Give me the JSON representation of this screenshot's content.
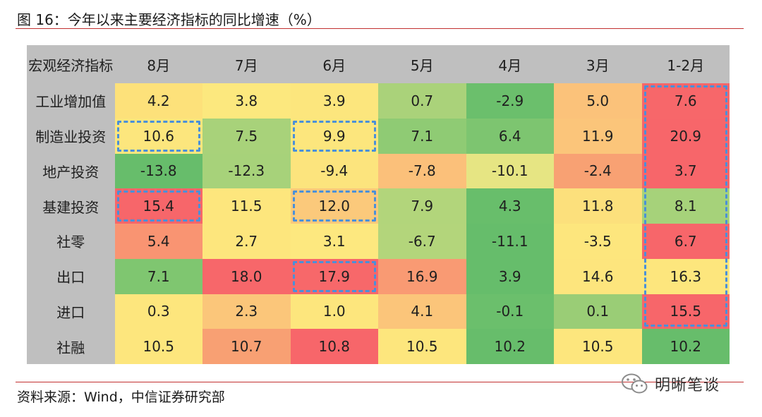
{
  "figure": {
    "title": "图 16：今年以来主要经济指标的同比增速（%）",
    "source": "资料来源：Wind，中信证券研究部",
    "watermark_brand": "明晰笔谈"
  },
  "chart_data": {
    "type": "heatmap",
    "corner_label": "宏观经济指标",
    "columns": [
      "8月",
      "7月",
      "6月",
      "5月",
      "4月",
      "3月",
      "1-2月"
    ],
    "rows": [
      {
        "label": "工业增加值",
        "values": [
          "4.2",
          "3.8",
          "3.9",
          "0.7",
          "-2.9",
          "5.0",
          "7.6"
        ],
        "colors": [
          "#fde17a",
          "#fce87e",
          "#fce67d",
          "#aad27a",
          "#6bbf6c",
          "#fbc27a",
          "#f7676a"
        ]
      },
      {
        "label": "制造业投资",
        "values": [
          "10.6",
          "7.5",
          "9.9",
          "7.1",
          "6.4",
          "11.9",
          "20.9"
        ],
        "colors": [
          "#fce67d",
          "#a8d27a",
          "#fce67d",
          "#8fcb74",
          "#7dc570",
          "#fbc57a",
          "#f7666a"
        ]
      },
      {
        "label": "地产投资",
        "values": [
          "-13.8",
          "-12.3",
          "-9.4",
          "-7.8",
          "-10.1",
          "-2.4",
          "3.7"
        ],
        "colors": [
          "#67bd6b",
          "#a7d27a",
          "#fce47d",
          "#fbc07a",
          "#e6e583",
          "#f8a173",
          "#f7666a"
        ]
      },
      {
        "label": "基建投资",
        "values": [
          "15.4",
          "11.5",
          "12.0",
          "7.9",
          "4.3",
          "11.8",
          "8.1"
        ],
        "colors": [
          "#f7666a",
          "#fde67d",
          "#fbc97b",
          "#b2d57b",
          "#68be6b",
          "#fce07c",
          "#a6d27a"
        ]
      },
      {
        "label": "社零",
        "values": [
          "5.4",
          "2.7",
          "3.1",
          "-6.7",
          "-11.1",
          "-3.5",
          "6.7"
        ],
        "colors": [
          "#f99472",
          "#fde67d",
          "#fde87f",
          "#b3d57b",
          "#66bd6b",
          "#fde67d",
          "#f7666a"
        ]
      },
      {
        "label": "出口",
        "values": [
          "7.1",
          "18.0",
          "17.9",
          "16.9",
          "3.9",
          "14.6",
          "16.3"
        ],
        "colors": [
          "#7fc670",
          "#f7676a",
          "#f7686a",
          "#f99a73",
          "#66bd6b",
          "#fde57d",
          "#fde67d"
        ]
      },
      {
        "label": "进口",
        "values": [
          "0.3",
          "2.3",
          "1.0",
          "4.1",
          "-0.1",
          "0.1",
          "15.5"
        ],
        "colors": [
          "#fde67d",
          "#fbc67a",
          "#fde67d",
          "#fbc57a",
          "#6bbf6c",
          "#9acd76",
          "#f7666a"
        ]
      },
      {
        "label": "社融",
        "values": [
          "10.5",
          "10.7",
          "10.8",
          "10.5",
          "10.2",
          "10.5",
          "10.2"
        ],
        "colors": [
          "#fde67d",
          "#f8a073",
          "#f7666a",
          "#fde67d",
          "#67bd6b",
          "#fde67d",
          "#67bd6b"
        ]
      }
    ],
    "header_bg": "#bfbfbf",
    "highlight_color": "#4a90d9",
    "highlights": [
      {
        "row_start": 1,
        "row_end": 1,
        "col_start": 0,
        "col_end": 0
      },
      {
        "row_start": 3,
        "row_end": 3,
        "col_start": 0,
        "col_end": 0
      },
      {
        "row_start": 1,
        "row_end": 1,
        "col_start": 2,
        "col_end": 2
      },
      {
        "row_start": 3,
        "row_end": 3,
        "col_start": 2,
        "col_end": 2
      },
      {
        "row_start": 5,
        "row_end": 5,
        "col_start": 2,
        "col_end": 2
      },
      {
        "row_start": 0,
        "row_end": 6,
        "col_start": 6,
        "col_end": 6
      }
    ]
  }
}
